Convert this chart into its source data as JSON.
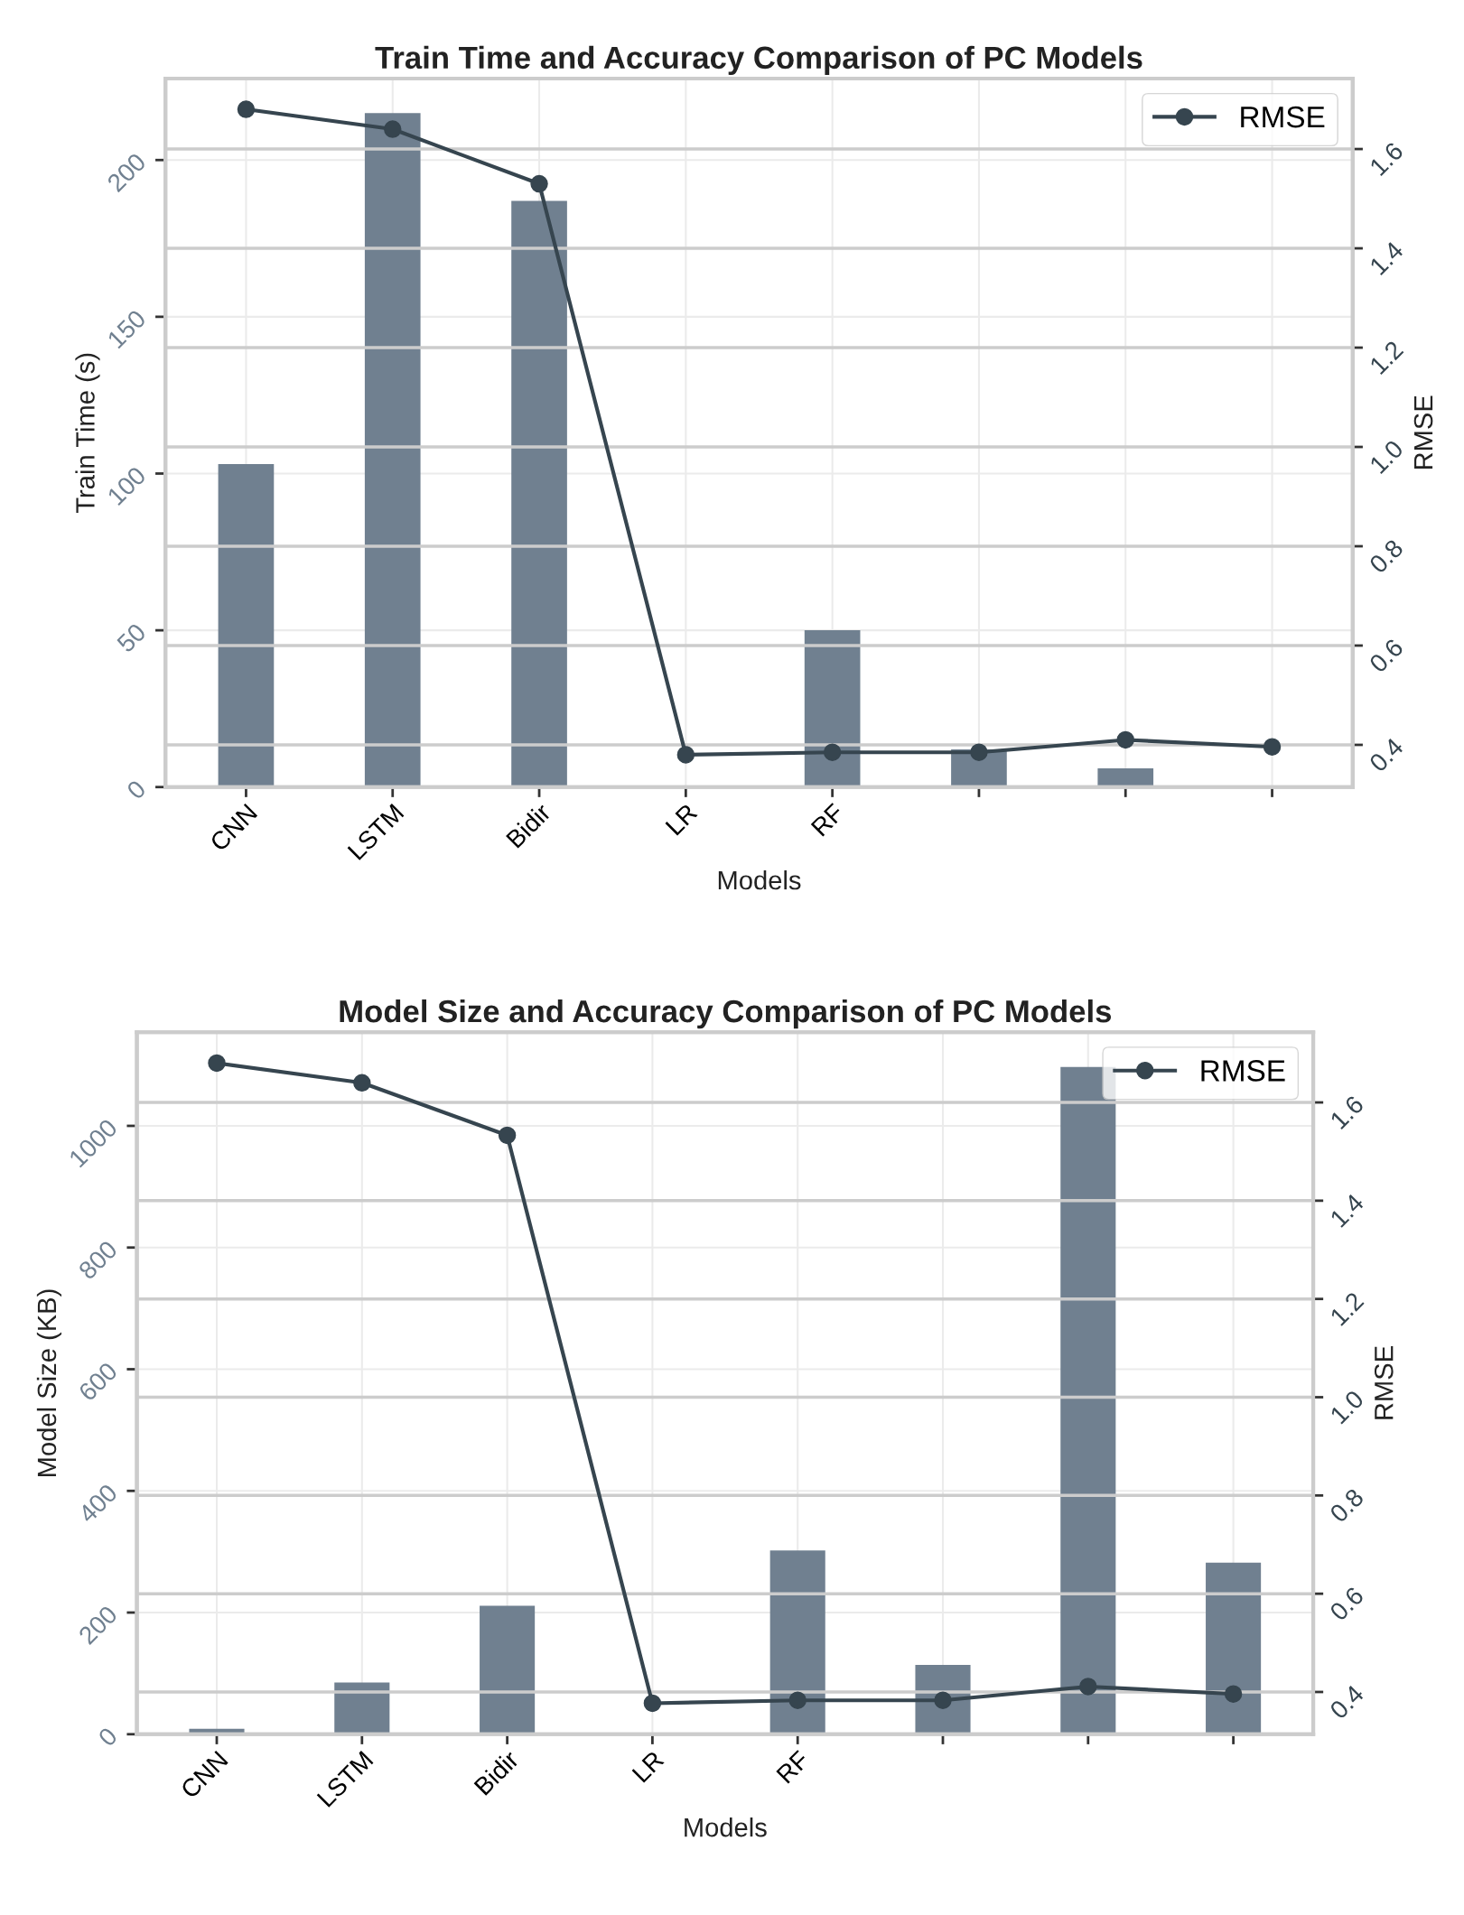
{
  "chart_data": [
    {
      "type": "bar",
      "title": "Train Time and Accuracy Comparison of PC Models",
      "xlabel": "Models",
      "ylabel": "Train Time (s)",
      "y2label": "RMSE",
      "categories": [
        "CNN",
        "LSTM",
        "Bidir",
        "LR",
        "RF",
        null,
        null,
        null
      ],
      "series": [
        {
          "color": "#708090",
          "values": [
            103,
            215,
            187,
            0,
            50,
            12,
            6,
            0
          ]
        },
        {
          "type": "line",
          "name": "RMSE",
          "axis": "y2",
          "color": "#36454f",
          "marker": "circle",
          "values": [
            1.68,
            1.64,
            1.53,
            0.38,
            0.385,
            0.385,
            0.41,
            0.396
          ]
        }
      ],
      "ylim": [
        0,
        226
      ],
      "yticks": [
        0,
        50,
        100,
        150,
        200
      ],
      "y2lim": [
        0.315,
        1.742
      ],
      "y2ticks": [
        0.4,
        0.6,
        0.8,
        {
          "value": 1,
          "label": "1.0"
        },
        1.2,
        1.4,
        1.6
      ],
      "grid": true,
      "legend": "top right"
    },
    {
      "type": "bar",
      "title": "Model Size and Accuracy Comparison of PC Models",
      "xlabel": "Models",
      "ylabel": "Model Size (KB)",
      "y2label": "RMSE",
      "categories": [
        "CNN",
        "LSTM",
        "Bidir",
        "LR",
        "RF",
        null,
        null,
        null
      ],
      "series": [
        {
          "color": "#708090",
          "values": [
            9,
            85,
            211,
            0,
            302,
            114,
            1097,
            282
          ]
        },
        {
          "type": "line",
          "name": "RMSE",
          "axis": "y2",
          "color": "#36454f",
          "marker": "circle",
          "values": [
            1.68,
            1.64,
            1.533,
            0.377,
            0.383,
            0.383,
            0.411,
            0.396
          ]
        }
      ],
      "ylim": [
        0,
        1154
      ],
      "yticks": [
        0,
        200,
        400,
        600,
        800,
        1000
      ],
      "y2lim": [
        0.314,
        1.743
      ],
      "y2ticks": [
        0.4,
        0.6,
        0.8,
        {
          "value": 1,
          "label": "1.0"
        },
        1.2,
        1.4,
        1.6
      ],
      "grid": true,
      "legend": "top right"
    }
  ]
}
